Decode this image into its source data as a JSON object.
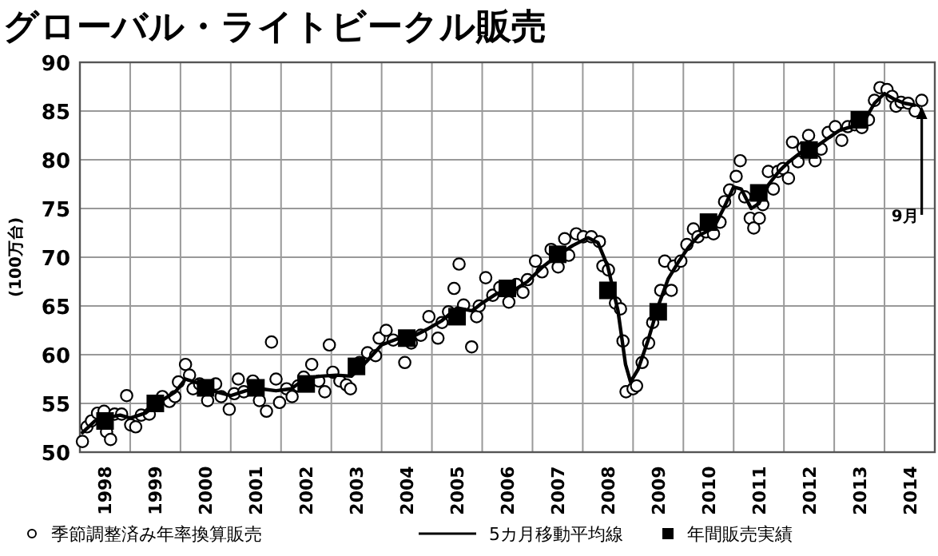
{
  "chart_data": {
    "type": "scatter",
    "title": "グローバル・ライトビークル販売",
    "ylabel": "(100万台)",
    "xlim": [
      1998,
      2015
    ],
    "xticks": [
      {
        "value": 1998,
        "label": null
      },
      {
        "value": 1998.5,
        "label": "1998"
      },
      {
        "value": 1999,
        "label": null
      },
      {
        "value": 1999.5,
        "label": "1999"
      },
      {
        "value": 2000,
        "label": null
      },
      {
        "value": 2000.5,
        "label": "2000"
      },
      {
        "value": 2001,
        "label": null
      },
      {
        "value": 2001.5,
        "label": "2001"
      },
      {
        "value": 2002,
        "label": null
      },
      {
        "value": 2002.5,
        "label": "2002"
      },
      {
        "value": 2003,
        "label": null
      },
      {
        "value": 2003.5,
        "label": "2003"
      },
      {
        "value": 2004,
        "label": null
      },
      {
        "value": 2004.5,
        "label": "2004"
      },
      {
        "value": 2005,
        "label": null
      },
      {
        "value": 2005.5,
        "label": "2005"
      },
      {
        "value": 2006,
        "label": null
      },
      {
        "value": 2006.5,
        "label": "2006"
      },
      {
        "value": 2007,
        "label": null
      },
      {
        "value": 2007.5,
        "label": "2007"
      },
      {
        "value": 2008,
        "label": null
      },
      {
        "value": 2008.5,
        "label": "2008"
      },
      {
        "value": 2009,
        "label": null
      },
      {
        "value": 2009.5,
        "label": "2009"
      },
      {
        "value": 2010,
        "label": null
      },
      {
        "value": 2010.5,
        "label": "2010"
      },
      {
        "value": 2011,
        "label": null
      },
      {
        "value": 2011.5,
        "label": "2011"
      },
      {
        "value": 2012,
        "label": null
      },
      {
        "value": 2012.5,
        "label": "2012"
      },
      {
        "value": 2013,
        "label": null
      },
      {
        "value": 2013.5,
        "label": "2013"
      },
      {
        "value": 2014,
        "label": null
      },
      {
        "value": 2014.5,
        "label": "2014"
      },
      {
        "value": 2015,
        "label": null
      }
    ],
    "ylim": [
      50,
      90
    ],
    "yticks": [
      50,
      55,
      60,
      65,
      70,
      75,
      80,
      85,
      90
    ],
    "grid": true,
    "legend": "bottom",
    "series": [
      {
        "name": "季節調整済み年率換算販売",
        "marker": "circle",
        "color": "#000000",
        "x": [
          1998.05,
          1998.14,
          1998.23,
          1998.35,
          1998.48,
          1998.53,
          1998.61,
          1998.69,
          1998.83,
          1998.93,
          1999.01,
          1999.11,
          1999.22,
          1999.38,
          1999.64,
          1999.78,
          1999.89,
          1999.96,
          2000.1,
          2000.18,
          2000.25,
          2000.38,
          2000.54,
          2000.7,
          2000.81,
          2000.97,
          2001.07,
          2001.15,
          2001.26,
          2001.44,
          2001.57,
          2001.71,
          2001.81,
          2001.9,
          2001.97,
          2002.11,
          2002.22,
          2002.34,
          2002.45,
          2002.61,
          2002.75,
          2002.87,
          2002.96,
          2003.03,
          2003.17,
          2003.3,
          2003.38,
          2003.56,
          2003.72,
          2003.88,
          2003.95,
          2004.09,
          2004.23,
          2004.46,
          2004.59,
          2004.78,
          2004.94,
          2005.12,
          2005.2,
          2005.33,
          2005.44,
          2005.54,
          2005.63,
          2005.79,
          2005.89,
          2005.94,
          2006.07,
          2006.21,
          2006.35,
          2006.53,
          2006.68,
          2006.81,
          2006.9,
          2007.06,
          2007.19,
          2007.37,
          2007.51,
          2007.64,
          2007.72,
          2007.87,
          2008.01,
          2008.17,
          2008.33,
          2008.4,
          2008.51,
          2008.65,
          2008.75,
          2008.8,
          2008.86,
          2009.0,
          2009.07,
          2009.18,
          2009.31,
          2009.39,
          2009.55,
          2009.63,
          2009.76,
          2009.81,
          2009.95,
          2010.07,
          2010.2,
          2010.29,
          2010.45,
          2010.6,
          2010.73,
          2010.82,
          2010.92,
          2011.05,
          2011.13,
          2011.22,
          2011.33,
          2011.4,
          2011.51,
          2011.58,
          2011.69,
          2011.79,
          2011.88,
          2011.98,
          2012.09,
          2012.17,
          2012.28,
          2012.38,
          2012.49,
          2012.62,
          2012.74,
          2012.88,
          2013.02,
          2013.15,
          2013.27,
          2013.41,
          2013.55,
          2013.68,
          2013.8,
          2013.91,
          2014.05,
          2014.15,
          2014.23,
          2014.33,
          2014.47,
          2014.61,
          2014.74
        ],
        "values": [
          51.1,
          52.6,
          53.2,
          54.0,
          54.2,
          52.1,
          51.3,
          53.9,
          53.9,
          55.8,
          52.8,
          52.6,
          53.8,
          53.9,
          55.7,
          55.2,
          55.7,
          57.2,
          59.0,
          57.9,
          56.5,
          57.0,
          55.3,
          57.0,
          55.7,
          54.4,
          56.0,
          57.5,
          56.2,
          57.3,
          55.3,
          54.2,
          61.3,
          57.5,
          55.1,
          56.5,
          55.7,
          56.8,
          57.7,
          59.0,
          57.3,
          56.2,
          61.0,
          58.2,
          57.3,
          56.9,
          56.5,
          59.2,
          60.2,
          59.9,
          61.7,
          62.5,
          61.5,
          59.2,
          61.2,
          62.0,
          63.9,
          61.7,
          63.3,
          64.4,
          66.8,
          69.3,
          65.1,
          60.8,
          63.9,
          65.0,
          67.9,
          66.1,
          66.9,
          65.4,
          67.2,
          66.4,
          67.7,
          69.6,
          68.5,
          70.8,
          69.0,
          71.9,
          70.2,
          72.4,
          72.1,
          72.1,
          71.6,
          69.1,
          68.7,
          65.3,
          64.7,
          61.4,
          56.2,
          56.5,
          56.8,
          59.2,
          61.2,
          63.3,
          66.6,
          69.6,
          66.6,
          69.1,
          69.6,
          71.3,
          72.9,
          72.1,
          72.6,
          72.4,
          73.6,
          75.7,
          76.9,
          78.3,
          79.9,
          76.2,
          74.0,
          73.0,
          74.0,
          75.4,
          78.8,
          77.0,
          78.8,
          79.1,
          78.1,
          81.8,
          79.8,
          81.2,
          82.5,
          79.9,
          81.1,
          82.8,
          83.4,
          82.0,
          83.4,
          83.6,
          83.3,
          84.1,
          86.1,
          87.4,
          87.2,
          86.5,
          85.5,
          85.9,
          85.8,
          85.0,
          86.1
        ]
      },
      {
        "name": "5カ月移動平均線",
        "type": "line",
        "color": "#000000",
        "x": [
          1998.05,
          1998.3,
          1998.5,
          1998.8,
          1999.0,
          1999.3,
          1999.6,
          1999.9,
          2000.1,
          2000.4,
          2000.7,
          2001.0,
          2001.3,
          2001.6,
          2001.9,
          2002.2,
          2002.5,
          2002.8,
          2003.1,
          2003.4,
          2003.7,
          2004.0,
          2004.3,
          2004.6,
          2004.9,
          2005.2,
          2005.5,
          2005.8,
          2006.0,
          2006.3,
          2006.6,
          2006.9,
          2007.2,
          2007.5,
          2007.8,
          2008.1,
          2008.3,
          2008.5,
          2008.7,
          2008.85,
          2008.95,
          2009.1,
          2009.3,
          2009.5,
          2009.7,
          2009.9,
          2010.1,
          2010.3,
          2010.6,
          2010.8,
          2011.0,
          2011.15,
          2011.35,
          2011.5,
          2011.7,
          2011.9,
          2012.1,
          2012.4,
          2012.6,
          2012.9,
          2013.1,
          2013.4,
          2013.6,
          2013.8,
          2014.0,
          2014.2,
          2014.4,
          2014.6
        ],
        "values": [
          52.0,
          53.2,
          53.5,
          53.8,
          53.5,
          54.0,
          55.2,
          56.2,
          57.5,
          57.0,
          56.2,
          55.8,
          56.3,
          56.5,
          56.3,
          56.5,
          57.6,
          57.8,
          57.9,
          57.8,
          59.3,
          61.0,
          61.6,
          61.8,
          62.6,
          63.5,
          64.8,
          64.5,
          65.3,
          66.3,
          66.5,
          67.5,
          69.0,
          70.2,
          71.2,
          72.0,
          71.5,
          69.0,
          64.5,
          59.0,
          57.2,
          58.5,
          61.5,
          65.0,
          67.8,
          69.5,
          71.0,
          72.2,
          73.0,
          75.0,
          77.2,
          77.0,
          75.0,
          75.5,
          77.5,
          78.8,
          79.8,
          81.0,
          81.2,
          82.3,
          83.0,
          83.5,
          84.0,
          85.8,
          86.8,
          86.2,
          85.8,
          85.6
        ]
      },
      {
        "name": "年間販売実績",
        "marker": "square",
        "color": "#000000",
        "x": [
          1998.5,
          1999.5,
          2000.5,
          2001.5,
          2002.5,
          2003.5,
          2004.5,
          2005.5,
          2006.5,
          2007.5,
          2008.5,
          2009.5,
          2010.5,
          2011.5,
          2012.5,
          2013.5
        ],
        "values": [
          53.2,
          55.0,
          56.6,
          56.6,
          57.0,
          58.8,
          61.7,
          63.9,
          66.8,
          70.3,
          66.6,
          64.4,
          73.6,
          76.6,
          81.0,
          84.1
        ]
      }
    ],
    "annotations": [
      {
        "text": "9月",
        "x": 2014.74,
        "y": 85.5
      }
    ]
  }
}
